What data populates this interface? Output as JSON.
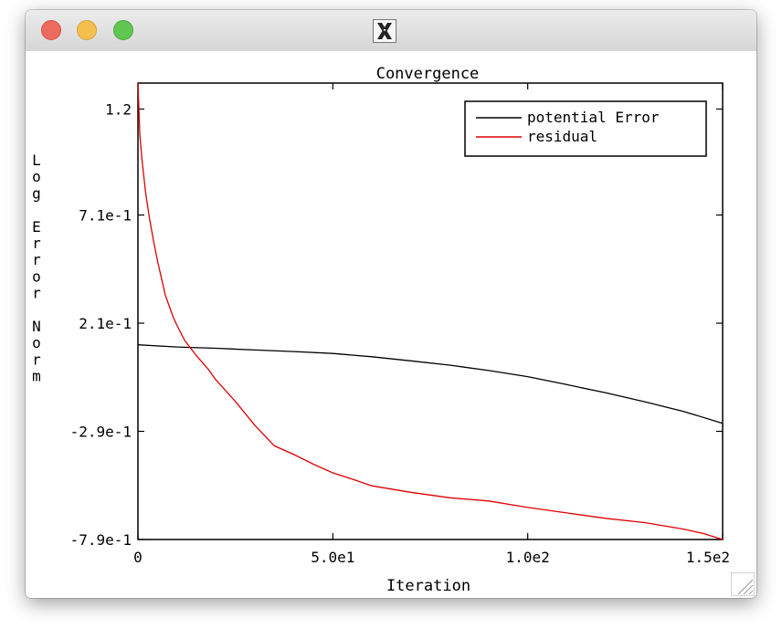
{
  "window": {
    "title_icon": "x11-icon",
    "buttons": [
      "close-button",
      "minimize-button",
      "maximize-button"
    ]
  },
  "chart_data": {
    "type": "line",
    "title": "Convergence",
    "xlabel": "Iteration",
    "ylabel": "Log Error Norm",
    "xlim": [
      0,
      150
    ],
    "ylim": [
      -0.79,
      1.32
    ],
    "xticks": [
      0,
      50,
      100,
      150
    ],
    "xtick_labels": [
      "0",
      "5.0e1",
      "1.0e2",
      "1.5e2"
    ],
    "yticks": [
      1.2,
      0.71,
      0.21,
      -0.29,
      -0.79
    ],
    "ytick_labels": [
      "1.2",
      "7.1e-1",
      "2.1e-1",
      "-2.9e-1",
      "-7.9e-1"
    ],
    "grid": false,
    "legend_position": "top-right",
    "series": [
      {
        "name": "potential Error",
        "color": "#000000",
        "x": [
          0,
          10,
          20,
          30,
          40,
          50,
          60,
          70,
          80,
          90,
          100,
          110,
          120,
          130,
          140,
          150
        ],
        "y": [
          0.11,
          0.1,
          0.094,
          0.086,
          0.079,
          0.07,
          0.055,
          0.036,
          0.016,
          -0.009,
          -0.037,
          -0.074,
          -0.112,
          -0.153,
          -0.198,
          -0.253
        ]
      },
      {
        "name": "residual",
        "color": "#dd0000",
        "x": [
          0,
          0.5,
          1,
          2,
          3,
          4,
          5,
          7,
          9,
          10,
          12,
          15,
          18,
          20,
          25,
          30,
          35,
          40,
          45,
          50,
          55,
          60,
          70,
          80,
          90,
          100,
          110,
          120,
          130,
          140,
          145,
          150
        ],
        "y": [
          1.32,
          1.08,
          0.97,
          0.81,
          0.69,
          0.59,
          0.5,
          0.34,
          0.24,
          0.2,
          0.13,
          0.06,
          -0.002,
          -0.052,
          -0.152,
          -0.262,
          -0.357,
          -0.397,
          -0.442,
          -0.482,
          -0.511,
          -0.542,
          -0.572,
          -0.597,
          -0.612,
          -0.642,
          -0.667,
          -0.692,
          -0.712,
          -0.742,
          -0.762,
          -0.79
        ]
      }
    ]
  }
}
